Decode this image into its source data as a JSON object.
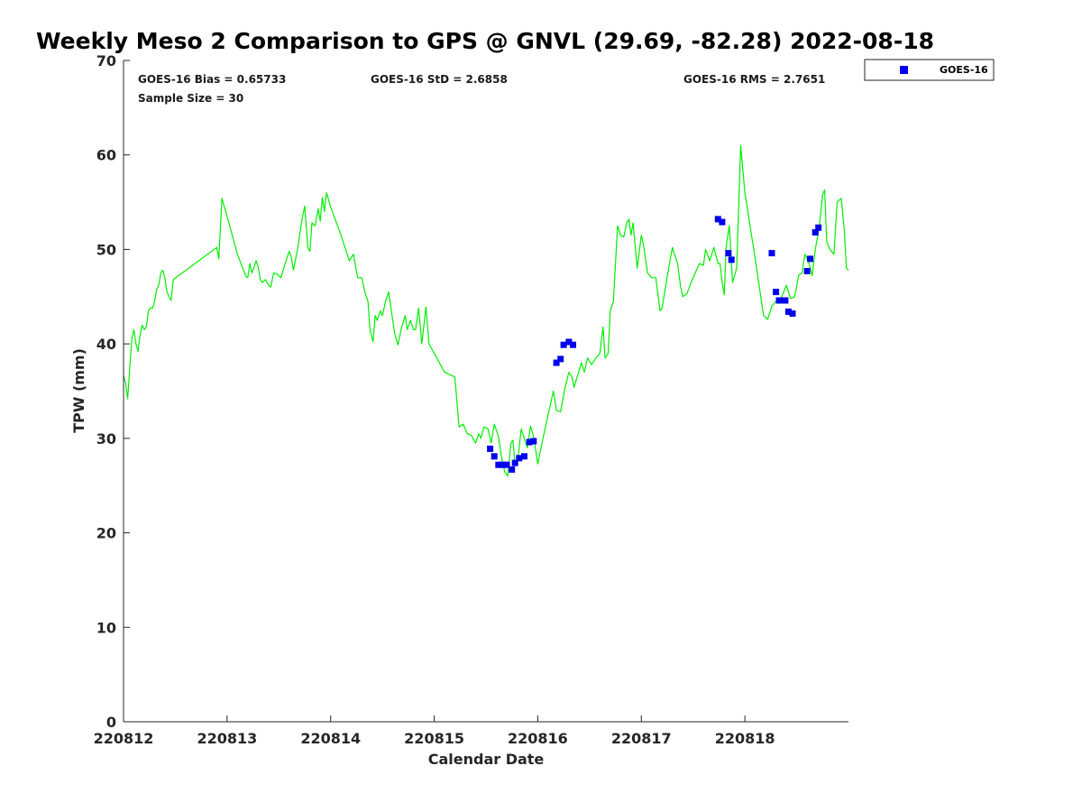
{
  "chart_data": {
    "type": "line",
    "title": "Weekly Meso 2 Comparison to GPS @ GNVL (29.69, -82.28) 2022-08-18",
    "xlabel": "Calendar Date",
    "ylabel": "TPW (mm)",
    "xlim": [
      220812,
      220819
    ],
    "ylim": [
      0,
      70
    ],
    "x_ticks": [
      220812,
      220813,
      220814,
      220815,
      220816,
      220817,
      220818
    ],
    "x_tick_labels": [
      "220812",
      "220813",
      "220814",
      "220815",
      "220816",
      "220817",
      "220818"
    ],
    "y_ticks": [
      0,
      10,
      20,
      30,
      40,
      50,
      60,
      70
    ],
    "y_tick_labels": [
      "0",
      "10",
      "20",
      "30",
      "40",
      "50",
      "60",
      "70"
    ],
    "grid": false,
    "legend_position": "outside-top-right",
    "stats": {
      "bias": "GOES-16 Bias = 0.65733",
      "std": "GOES-16 StD = 2.6858",
      "rms": "GOES-16 RMS = 2.7651",
      "sample": "Sample Size = 30"
    },
    "series": [
      {
        "kind": "line",
        "color": "#00ee00",
        "points": [
          [
            220812.0,
            36.7
          ],
          [
            220812.02,
            35.8
          ],
          [
            220812.04,
            34.2
          ],
          [
            220812.06,
            37.5
          ],
          [
            220812.08,
            40.5
          ],
          [
            220812.1,
            41.5
          ],
          [
            220812.12,
            40.0
          ],
          [
            220812.14,
            39.2
          ],
          [
            220812.16,
            41.0
          ],
          [
            220812.18,
            42.0
          ],
          [
            220812.2,
            41.5
          ],
          [
            220812.22,
            41.8
          ],
          [
            220812.24,
            43.5
          ],
          [
            220812.26,
            43.8
          ],
          [
            220812.28,
            43.8
          ],
          [
            220812.3,
            44.5
          ],
          [
            220812.32,
            45.8
          ],
          [
            220812.34,
            46.2
          ],
          [
            220812.36,
            47.5
          ],
          [
            220812.38,
            47.8
          ],
          [
            220812.4,
            47.0
          ],
          [
            220812.42,
            45.5
          ],
          [
            220812.44,
            45.0
          ],
          [
            220812.46,
            44.6
          ],
          [
            220812.48,
            46.8
          ],
          [
            220812.9,
            50.2
          ],
          [
            220812.92,
            49.0
          ],
          [
            220812.95,
            55.4
          ],
          [
            220813.0,
            53.5
          ],
          [
            220813.1,
            49.5
          ],
          [
            220813.18,
            47.2
          ],
          [
            220813.2,
            47.0
          ],
          [
            220813.22,
            48.5
          ],
          [
            220813.24,
            47.5
          ],
          [
            220813.28,
            48.8
          ],
          [
            220813.3,
            48.2
          ],
          [
            220813.32,
            46.8
          ],
          [
            220813.34,
            46.5
          ],
          [
            220813.37,
            46.8
          ],
          [
            220813.4,
            46.2
          ],
          [
            220813.42,
            46.0
          ],
          [
            220813.45,
            47.5
          ],
          [
            220813.48,
            47.4
          ],
          [
            220813.52,
            47.0
          ],
          [
            220813.56,
            48.5
          ],
          [
            220813.6,
            49.8
          ],
          [
            220813.62,
            49.2
          ],
          [
            220813.64,
            47.8
          ],
          [
            220813.68,
            50.0
          ],
          [
            220813.72,
            53.0
          ],
          [
            220813.75,
            54.6
          ],
          [
            220813.78,
            50.2
          ],
          [
            220813.8,
            49.8
          ],
          [
            220813.82,
            52.8
          ],
          [
            220813.85,
            52.5
          ],
          [
            220813.88,
            54.3
          ],
          [
            220813.9,
            53.0
          ],
          [
            220813.92,
            55.5
          ],
          [
            220813.94,
            54.0
          ],
          [
            220813.96,
            56.0
          ],
          [
            220814.0,
            54.5
          ],
          [
            220814.1,
            51.5
          ],
          [
            220814.18,
            48.8
          ],
          [
            220814.22,
            49.5
          ],
          [
            220814.26,
            47.0
          ],
          [
            220814.3,
            47.0
          ],
          [
            220814.33,
            45.5
          ],
          [
            220814.36,
            44.5
          ],
          [
            220814.38,
            41.5
          ],
          [
            220814.41,
            40.2
          ],
          [
            220814.43,
            43.0
          ],
          [
            220814.45,
            42.5
          ],
          [
            220814.48,
            43.5
          ],
          [
            220814.5,
            43.0
          ],
          [
            220814.53,
            44.5
          ],
          [
            220814.56,
            45.5
          ],
          [
            220814.58,
            44.0
          ],
          [
            220814.62,
            41.0
          ],
          [
            220814.65,
            39.9
          ],
          [
            220814.68,
            41.5
          ],
          [
            220814.72,
            43.0
          ],
          [
            220814.74,
            41.5
          ],
          [
            220814.77,
            42.5
          ],
          [
            220814.8,
            41.5
          ],
          [
            220814.82,
            41.5
          ],
          [
            220814.85,
            43.8
          ],
          [
            220814.88,
            40.0
          ],
          [
            220814.92,
            43.9
          ],
          [
            220814.95,
            40.0
          ],
          [
            220815.1,
            37.0
          ],
          [
            220815.2,
            36.5
          ],
          [
            220815.24,
            31.2
          ],
          [
            220815.28,
            31.5
          ],
          [
            220815.32,
            30.5
          ],
          [
            220815.36,
            30.3
          ],
          [
            220815.4,
            29.5
          ],
          [
            220815.43,
            30.5
          ],
          [
            220815.45,
            30.0
          ],
          [
            220815.48,
            31.2
          ],
          [
            220815.52,
            31.0
          ],
          [
            220815.55,
            29.5
          ],
          [
            220815.58,
            31.5
          ],
          [
            220815.62,
            30.2
          ],
          [
            220815.65,
            28.0
          ],
          [
            220815.68,
            26.5
          ],
          [
            220815.71,
            26.0
          ],
          [
            220815.74,
            29.5
          ],
          [
            220815.76,
            29.8
          ],
          [
            220815.78,
            27.2
          ],
          [
            220815.81,
            28.0
          ],
          [
            220815.84,
            31.0
          ],
          [
            220815.87,
            30.0
          ],
          [
            220815.9,
            29.0
          ],
          [
            220815.93,
            31.3
          ],
          [
            220815.96,
            30.2
          ],
          [
            220816.0,
            27.3
          ],
          [
            220816.05,
            30.0
          ],
          [
            220816.1,
            32.5
          ],
          [
            220816.15,
            35.0
          ],
          [
            220816.18,
            33.0
          ],
          [
            220816.22,
            32.8
          ],
          [
            220816.26,
            35.2
          ],
          [
            220816.3,
            37.0
          ],
          [
            220816.33,
            36.5
          ],
          [
            220816.35,
            35.4
          ],
          [
            220816.38,
            36.5
          ],
          [
            220816.42,
            38.0
          ],
          [
            220816.45,
            37.0
          ],
          [
            220816.48,
            38.5
          ],
          [
            220816.52,
            37.8
          ],
          [
            220816.56,
            38.5
          ],
          [
            220816.6,
            39.0
          ],
          [
            220816.63,
            41.8
          ],
          [
            220816.65,
            38.5
          ],
          [
            220816.68,
            39.0
          ],
          [
            220816.7,
            43.5
          ],
          [
            220816.73,
            44.5
          ],
          [
            220816.77,
            52.5
          ],
          [
            220816.8,
            51.5
          ],
          [
            220816.83,
            51.3
          ],
          [
            220816.86,
            52.8
          ],
          [
            220816.88,
            53.2
          ],
          [
            220816.9,
            51.5
          ],
          [
            220816.92,
            52.8
          ],
          [
            220816.96,
            48.0
          ],
          [
            220817.0,
            51.5
          ],
          [
            220817.02,
            50.5
          ],
          [
            220817.06,
            47.5
          ],
          [
            220817.1,
            47.0
          ],
          [
            220817.14,
            47.0
          ],
          [
            220817.18,
            43.5
          ],
          [
            220817.2,
            43.8
          ],
          [
            220817.24,
            46.5
          ],
          [
            220817.28,
            49.0
          ],
          [
            220817.3,
            50.2
          ],
          [
            220817.32,
            49.5
          ],
          [
            220817.35,
            48.5
          ],
          [
            220817.38,
            46.0
          ],
          [
            220817.4,
            45.0
          ],
          [
            220817.44,
            45.3
          ],
          [
            220817.48,
            46.5
          ],
          [
            220817.52,
            47.5
          ],
          [
            220817.56,
            48.5
          ],
          [
            220817.6,
            48.3
          ],
          [
            220817.62,
            50.0
          ],
          [
            220817.66,
            48.8
          ],
          [
            220817.7,
            50.2
          ],
          [
            220817.74,
            48.5
          ],
          [
            220817.76,
            48.5
          ],
          [
            220817.78,
            46.5
          ],
          [
            220817.8,
            45.2
          ],
          [
            220817.82,
            50.5
          ],
          [
            220817.85,
            52.5
          ],
          [
            220817.88,
            46.5
          ],
          [
            220817.92,
            48.0
          ],
          [
            220817.96,
            61.0
          ],
          [
            220818.0,
            56.0
          ],
          [
            220818.1,
            49.0
          ],
          [
            220818.18,
            43.0
          ],
          [
            220818.22,
            42.6
          ],
          [
            220818.26,
            44.0
          ],
          [
            220818.3,
            44.5
          ],
          [
            220818.35,
            44.8
          ],
          [
            220818.4,
            46.2
          ],
          [
            220818.44,
            44.8
          ],
          [
            220818.48,
            45.0
          ],
          [
            220818.52,
            47.3
          ],
          [
            220818.55,
            47.5
          ],
          [
            220818.58,
            49.5
          ],
          [
            220818.62,
            48.5
          ],
          [
            220818.65,
            47.2
          ],
          [
            220818.68,
            50.0
          ],
          [
            220818.72,
            52.5
          ],
          [
            220818.75,
            55.8
          ],
          [
            220818.77,
            56.3
          ],
          [
            220818.79,
            50.8
          ],
          [
            220818.82,
            50.0
          ],
          [
            220818.86,
            49.5
          ],
          [
            220818.89,
            55.0
          ],
          [
            220818.93,
            55.4
          ],
          [
            220818.96,
            52.0
          ],
          [
            220818.98,
            48.0
          ],
          [
            220819.0,
            47.8
          ]
        ]
      },
      {
        "kind": "scatter",
        "name": "GOES-16",
        "color": "#0000ee",
        "points": [
          [
            220815.54,
            28.9
          ],
          [
            220815.58,
            28.1
          ],
          [
            220815.62,
            27.2
          ],
          [
            220815.66,
            27.2
          ],
          [
            220815.7,
            27.2
          ],
          [
            220815.75,
            26.7
          ],
          [
            220815.78,
            27.4
          ],
          [
            220815.82,
            27.9
          ],
          [
            220815.87,
            28.1
          ],
          [
            220815.92,
            29.6
          ],
          [
            220815.96,
            29.7
          ],
          [
            220816.18,
            38.0
          ],
          [
            220816.22,
            38.4
          ],
          [
            220816.25,
            39.9
          ],
          [
            220816.3,
            40.2
          ],
          [
            220816.34,
            39.9
          ],
          [
            220817.74,
            53.2
          ],
          [
            220817.78,
            52.9
          ],
          [
            220817.84,
            49.6
          ],
          [
            220817.87,
            48.9
          ],
          [
            220818.26,
            49.6
          ],
          [
            220818.3,
            45.5
          ],
          [
            220818.33,
            44.6
          ],
          [
            220818.39,
            44.6
          ],
          [
            220818.42,
            43.4
          ],
          [
            220818.46,
            43.2
          ],
          [
            220818.6,
            47.7
          ],
          [
            220818.63,
            49.0
          ],
          [
            220818.68,
            51.8
          ],
          [
            220818.71,
            52.3
          ]
        ]
      }
    ]
  }
}
